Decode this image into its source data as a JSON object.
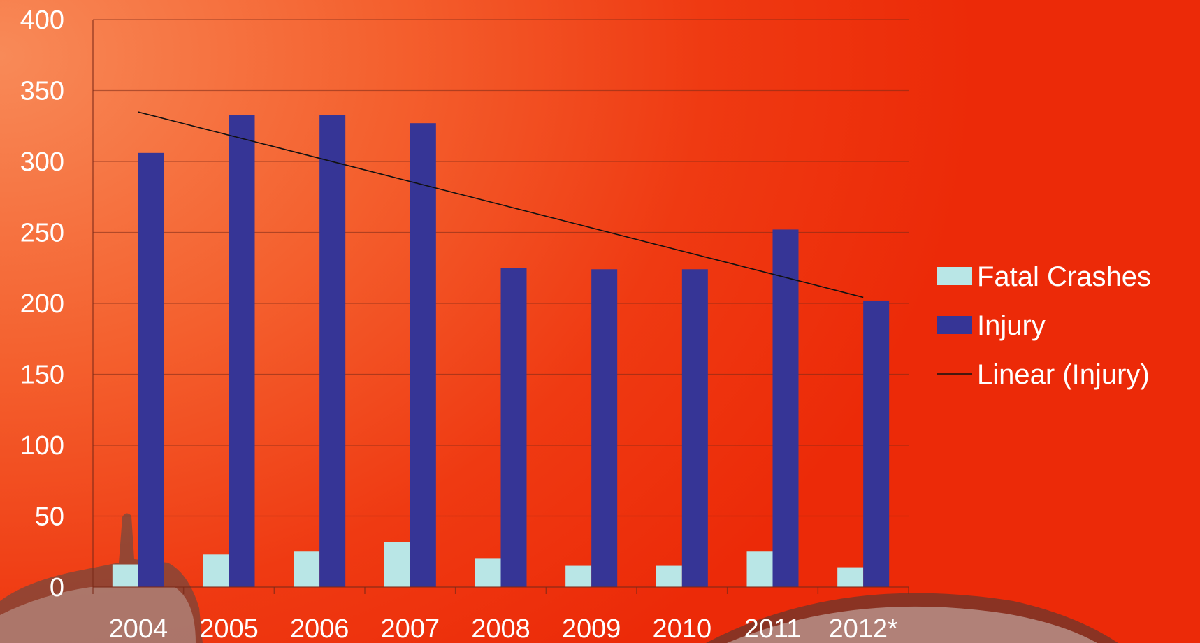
{
  "chart_data": {
    "type": "bar",
    "categories": [
      "2004",
      "2005",
      "2006",
      "2007",
      "2008",
      "2009",
      "2010",
      "2011",
      "2012*"
    ],
    "series": [
      {
        "name": "Fatal Crashes",
        "color": "#b9e6e6",
        "values": [
          16,
          23,
          25,
          32,
          20,
          15,
          15,
          25,
          14
        ]
      },
      {
        "name": "Injury",
        "color": "#363596",
        "values": [
          306,
          333,
          333,
          327,
          225,
          224,
          224,
          252,
          202
        ]
      }
    ],
    "trendline": {
      "name": "Linear (Injury)",
      "color": "#111111",
      "type": "linear",
      "of_series": "Injury"
    },
    "y_ticks": [
      "0",
      "50",
      "100",
      "150",
      "200",
      "250",
      "300",
      "350",
      "400"
    ],
    "ylim": [
      0,
      400
    ],
    "title": "",
    "xlabel": "",
    "ylabel": "",
    "grid": true,
    "legend_position": "right"
  }
}
